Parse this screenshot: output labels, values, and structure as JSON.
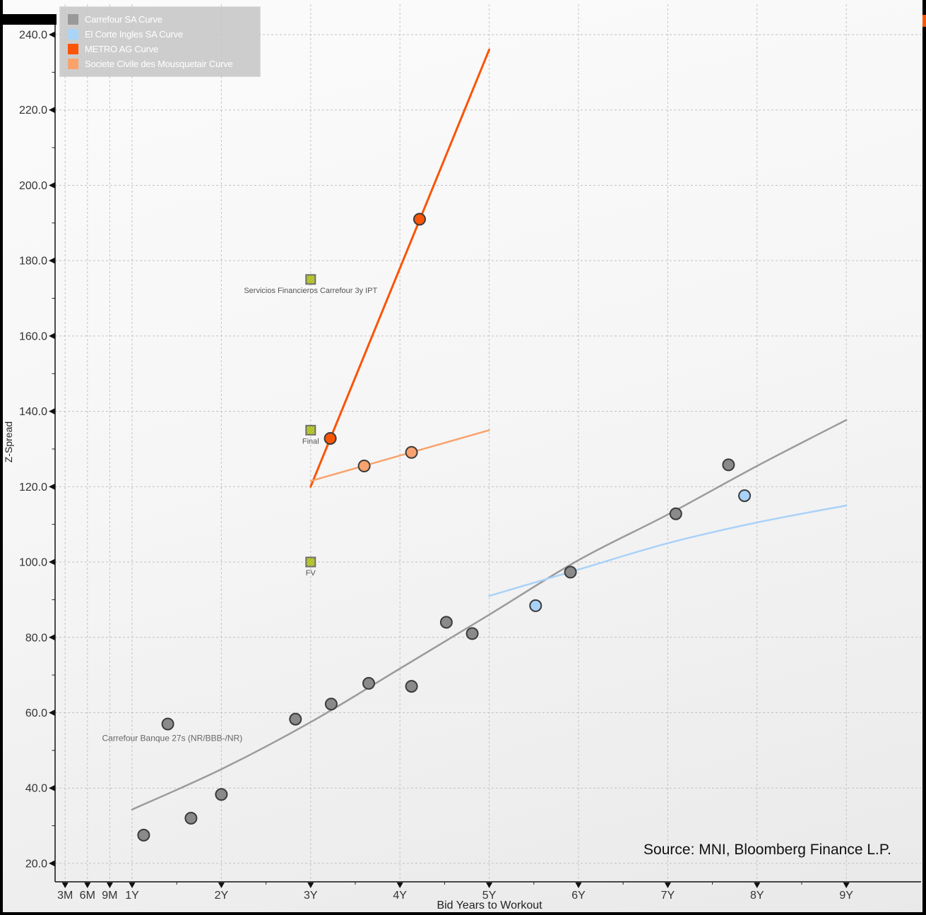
{
  "window": {
    "source_note": "Source: MNI, Bloomberg Finance L.P."
  },
  "axes": {
    "x_title": "Bid Years to Workout",
    "y_title": "Z-Spread",
    "x_ticks": [
      {
        "label": "3M",
        "years": 0.25
      },
      {
        "label": "6M",
        "years": 0.5
      },
      {
        "label": "9M",
        "years": 0.75
      },
      {
        "label": "1Y",
        "years": 1
      },
      {
        "label": "2Y",
        "years": 2
      },
      {
        "label": "3Y",
        "years": 3
      },
      {
        "label": "4Y",
        "years": 4
      },
      {
        "label": "5Y",
        "years": 5
      },
      {
        "label": "6Y",
        "years": 6
      },
      {
        "label": "7Y",
        "years": 7
      },
      {
        "label": "8Y",
        "years": 8
      },
      {
        "label": "9Y",
        "years": 9
      }
    ],
    "y_ticks": [
      240,
      220,
      200,
      180,
      160,
      140,
      120,
      100,
      80,
      60,
      40,
      20
    ]
  },
  "legend": {
    "items": [
      {
        "label": "Carrefour SA Curve",
        "color": "#999999"
      },
      {
        "label": "El Corte Ingles SA Curve",
        "color": "#aad4f8"
      },
      {
        "label": "METRO AG Curve",
        "color": "#fb5405"
      },
      {
        "label": "Societe Civile des Mousquetair Curve",
        "color": "#f9a26b"
      }
    ]
  },
  "chart_data": {
    "type": "scatter",
    "title": "",
    "xlabel": "Bid Years to Workout",
    "ylabel": "Z-Spread",
    "x_unit": "years to workout",
    "xlim_years": [
      0.1,
      9.85
    ],
    "ylim": [
      15,
      246
    ],
    "grid": true,
    "legend_position": "top-left",
    "series": [
      {
        "name": "Carrefour SA Curve",
        "line_color": "#9b9b9b",
        "marker_color": "#8a8a8a",
        "line_width": 2.5,
        "points": [
          [
            1.13,
            27.5
          ],
          [
            1.4,
            57.0
          ],
          [
            1.66,
            32.0
          ],
          [
            2.0,
            38.3
          ],
          [
            2.83,
            58.3
          ],
          [
            3.23,
            62.3
          ],
          [
            3.65,
            67.8
          ],
          [
            4.13,
            67.0
          ],
          [
            4.52,
            84.0
          ],
          [
            4.81,
            81.0
          ],
          [
            5.91,
            97.3
          ],
          [
            7.09,
            112.8
          ],
          [
            7.68,
            125.8
          ]
        ],
        "curve": [
          [
            1,
            34.3
          ],
          [
            2,
            45.0
          ],
          [
            3,
            57.5
          ],
          [
            4,
            71.7
          ],
          [
            5,
            86.0
          ],
          [
            6,
            100.5
          ],
          [
            7,
            112.6
          ],
          [
            8,
            125.5
          ],
          [
            9,
            137.7
          ]
        ]
      },
      {
        "name": "El Corte Ingles SA Curve",
        "line_color": "#a9d2f8",
        "marker_color": "#a9d2f8",
        "line_width": 2.5,
        "points": [
          [
            5.52,
            88.4
          ],
          [
            7.86,
            117.6
          ]
        ],
        "curve": [
          [
            5,
            91.0
          ],
          [
            6,
            98.0
          ],
          [
            7,
            105.0
          ],
          [
            8,
            110.5
          ],
          [
            9,
            115.0
          ]
        ]
      },
      {
        "name": "METRO AG Curve",
        "line_color": "#fb5405",
        "marker_color": "#f95506",
        "line_width": 3,
        "points": [
          [
            3.22,
            132.8
          ],
          [
            4.22,
            191.0
          ]
        ],
        "curve": [
          [
            3,
            120.0
          ],
          [
            5,
            236.0
          ]
        ]
      },
      {
        "name": "Societe Civile des Mousquetair Curve",
        "line_color": "#f9a26b",
        "marker_color": "#f8a26e",
        "line_width": 2.5,
        "points": [
          [
            3.6,
            125.5
          ],
          [
            4.13,
            129.1
          ]
        ],
        "curve": [
          [
            3,
            121.5
          ],
          [
            5,
            135.0
          ]
        ]
      }
    ],
    "deal_markers": [
      {
        "label": "Servicios Financieros Carrefour 3y IPT",
        "x": 3.0,
        "y": 175.0
      },
      {
        "label": "Final",
        "x": 3.0,
        "y": 135.0
      },
      {
        "label": "FV",
        "x": 3.0,
        "y": 100.0
      }
    ],
    "annotations": [
      {
        "text": "Carrefour Banque 27s (NR/BBB-/NR)",
        "x": 1.45,
        "y": 52.5
      }
    ]
  }
}
